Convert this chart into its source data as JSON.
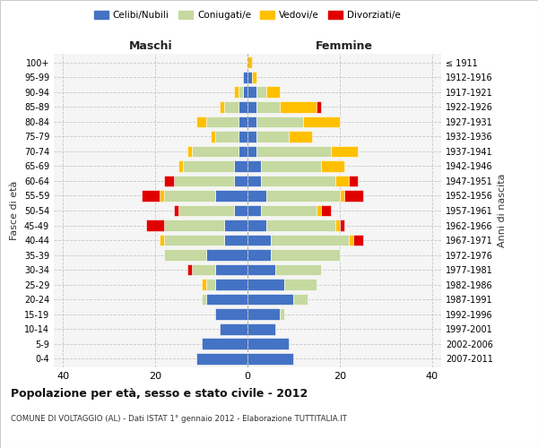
{
  "age_groups": [
    "100+",
    "95-99",
    "90-94",
    "85-89",
    "80-84",
    "75-79",
    "70-74",
    "65-69",
    "60-64",
    "55-59",
    "50-54",
    "45-49",
    "40-44",
    "35-39",
    "30-34",
    "25-29",
    "20-24",
    "15-19",
    "10-14",
    "5-9",
    "0-4"
  ],
  "birth_years": [
    "≤ 1911",
    "1912-1916",
    "1917-1921",
    "1922-1926",
    "1927-1931",
    "1932-1936",
    "1937-1941",
    "1942-1946",
    "1947-1951",
    "1952-1956",
    "1957-1961",
    "1962-1966",
    "1967-1971",
    "1972-1976",
    "1977-1981",
    "1982-1986",
    "1987-1991",
    "1992-1996",
    "1997-2001",
    "2002-2006",
    "2007-2011"
  ],
  "maschi_celibi": [
    0,
    1,
    1,
    2,
    2,
    2,
    2,
    3,
    3,
    7,
    3,
    5,
    5,
    9,
    7,
    7,
    9,
    7,
    6,
    10,
    11
  ],
  "maschi_coniugati": [
    0,
    0,
    1,
    3,
    7,
    5,
    10,
    11,
    13,
    11,
    12,
    13,
    13,
    9,
    5,
    2,
    1,
    0,
    0,
    0,
    0
  ],
  "maschi_vedovi": [
    0,
    0,
    1,
    1,
    2,
    1,
    1,
    1,
    0,
    1,
    0,
    0,
    1,
    0,
    0,
    1,
    0,
    0,
    0,
    0,
    0
  ],
  "maschi_divorziati": [
    0,
    0,
    0,
    0,
    0,
    0,
    0,
    0,
    2,
    4,
    1,
    4,
    0,
    0,
    1,
    0,
    0,
    0,
    0,
    0,
    0
  ],
  "femmine_celibi": [
    0,
    1,
    2,
    2,
    2,
    2,
    2,
    3,
    3,
    4,
    3,
    4,
    5,
    5,
    6,
    8,
    10,
    7,
    6,
    9,
    10
  ],
  "femmine_coniugati": [
    0,
    0,
    2,
    5,
    10,
    7,
    16,
    13,
    16,
    16,
    12,
    15,
    17,
    15,
    10,
    7,
    3,
    1,
    0,
    0,
    0
  ],
  "femmine_vedovi": [
    1,
    1,
    3,
    8,
    8,
    5,
    6,
    5,
    3,
    1,
    1,
    1,
    1,
    0,
    0,
    0,
    0,
    0,
    0,
    0,
    0
  ],
  "femmine_divorziati": [
    0,
    0,
    0,
    1,
    0,
    0,
    0,
    0,
    2,
    4,
    2,
    1,
    2,
    0,
    0,
    0,
    0,
    0,
    0,
    0,
    0
  ],
  "color_celibi": "#4472c4",
  "color_coniugati": "#c5d9a0",
  "color_vedovi": "#ffc000",
  "color_divorziati": "#e00000",
  "xlim": 42,
  "title": "Popolazione per età, sesso e stato civile - 2012",
  "subtitle": "COMUNE DI VOLTAGGIO (AL) - Dati ISTAT 1° gennaio 2012 - Elaborazione TUTTITALIA.IT",
  "ylabel": "Fasce di età",
  "ylabel_right": "Anni di nascita",
  "xlabel_left": "Maschi",
  "xlabel_right": "Femmine"
}
